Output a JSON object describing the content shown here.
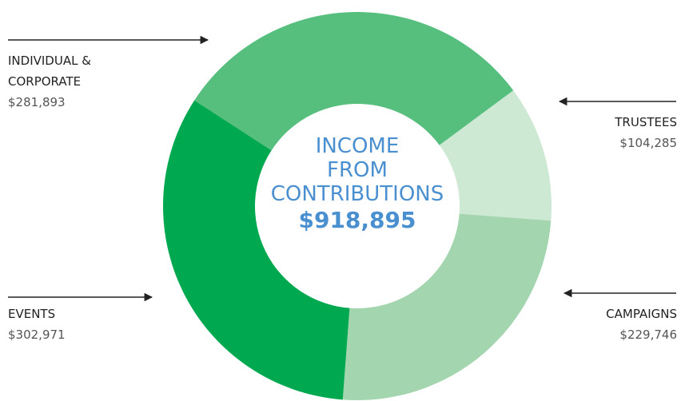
{
  "chart_data": {
    "type": "pie",
    "title": "INCOME FROM CONTRIBUTIONS",
    "total": {
      "value": 918895,
      "label": "$918,895"
    },
    "categories": [
      "INDIVIDUAL & CORPORATE",
      "TRUSTEES",
      "CAMPAIGNS",
      "EVENTS"
    ],
    "values": [
      281893,
      104285,
      229746,
      302971
    ],
    "value_labels": [
      "$281,893",
      "$104,285",
      "$229,746",
      "$302,971"
    ],
    "colors": [
      "#56bf7e",
      "#cde8d3",
      "#a3d5ae",
      "#00a94f"
    ]
  }
}
